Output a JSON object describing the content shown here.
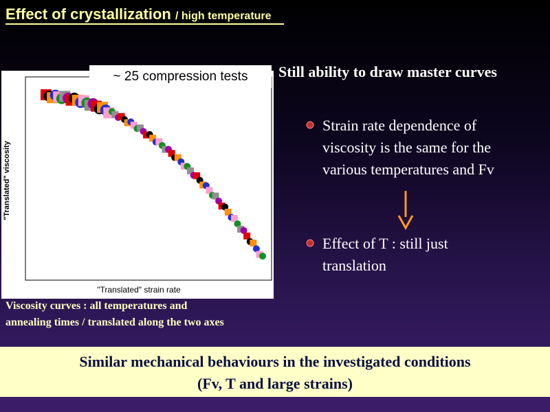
{
  "header": {
    "title": "Effect of crystallization",
    "subtitle": "/ high temperature"
  },
  "figure": {
    "inset": "~ 25 compression tests",
    "x_label": "\"Translated\" strain rate",
    "y_label": "\"Translated\" viscosity",
    "caption": [
      "Viscosity curves : all temperatures and",
      "annealing times / translated along the two axes"
    ]
  },
  "body": {
    "heading": "Still ability to draw master curves",
    "bullets": [
      [
        "Strain rate dependence of",
        "viscosity is the same for the",
        "various temperatures and Fv"
      ],
      [
        "Effect of T : still just",
        "translation"
      ]
    ]
  },
  "conclusion": [
    "Similar mechanical behaviours in the investigated conditions",
    "(Fv, T and large strains)"
  ]
}
